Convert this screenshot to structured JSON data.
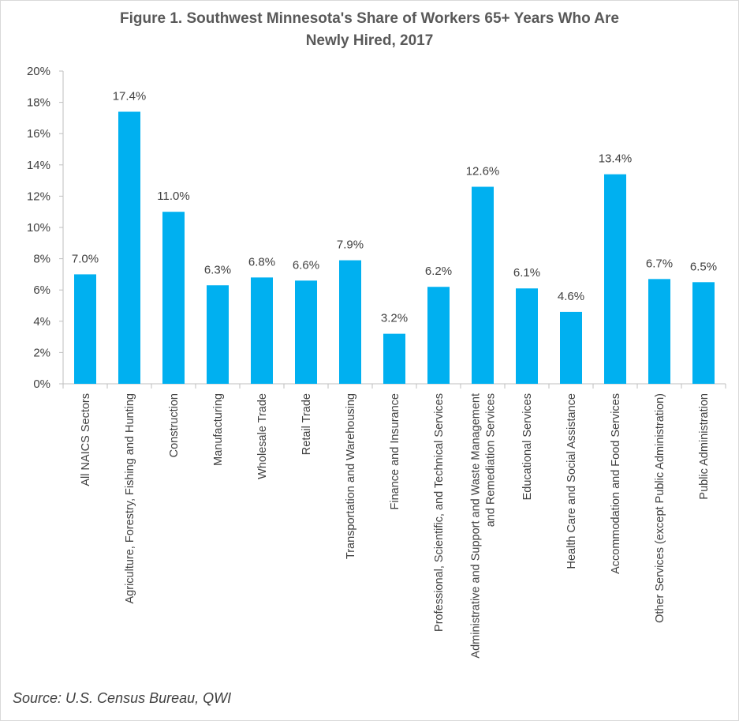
{
  "title_line1": "Figure 1. Southwest Minnesota's Share of Workers 65+ Years Who Are",
  "title_line2": "Newly Hired, 2017",
  "source": "Source: U.S. Census Bureau, QWI",
  "colors": {
    "bar": "#00b0f0",
    "axis": "#bfbfbf",
    "text": "#404040"
  },
  "chart_data": {
    "type": "bar",
    "title": "Figure 1. Southwest Minnesota's Share of Workers 65+ Years Who Are Newly Hired, 2017",
    "xlabel": "",
    "ylabel": "",
    "ylim": [
      0,
      20
    ],
    "yticks": [
      "0%",
      "2%",
      "4%",
      "6%",
      "8%",
      "10%",
      "12%",
      "14%",
      "16%",
      "18%",
      "20%"
    ],
    "grid": false,
    "categories": [
      [
        "All NAICS Sectors"
      ],
      [
        "Agriculture, Forestry, Fishing and Hunting"
      ],
      [
        "Construction"
      ],
      [
        "Manufacturing"
      ],
      [
        "Wholesale Trade"
      ],
      [
        "Retail Trade"
      ],
      [
        "Transportation and Warehousing"
      ],
      [
        "Finance and Insurance"
      ],
      [
        "Professional, Scientific, and Technical Services"
      ],
      [
        "Administrative and Support and Waste Management",
        "and Remediation Services"
      ],
      [
        "Educational Services"
      ],
      [
        "Health Care and Social Assistance"
      ],
      [
        "Accommodation and Food Services"
      ],
      [
        "Other Services (except Public Administration)"
      ],
      [
        "Public Administration"
      ]
    ],
    "values": [
      7.0,
      17.4,
      11.0,
      6.3,
      6.8,
      6.6,
      7.9,
      3.2,
      6.2,
      12.6,
      6.1,
      4.6,
      13.4,
      6.7,
      6.5
    ],
    "data_labels": [
      "7.0%",
      "17.4%",
      "11.0%",
      "6.3%",
      "6.8%",
      "6.6%",
      "7.9%",
      "3.2%",
      "6.2%",
      "12.6%",
      "6.1%",
      "4.6%",
      "13.4%",
      "6.7%",
      "6.5%"
    ]
  }
}
